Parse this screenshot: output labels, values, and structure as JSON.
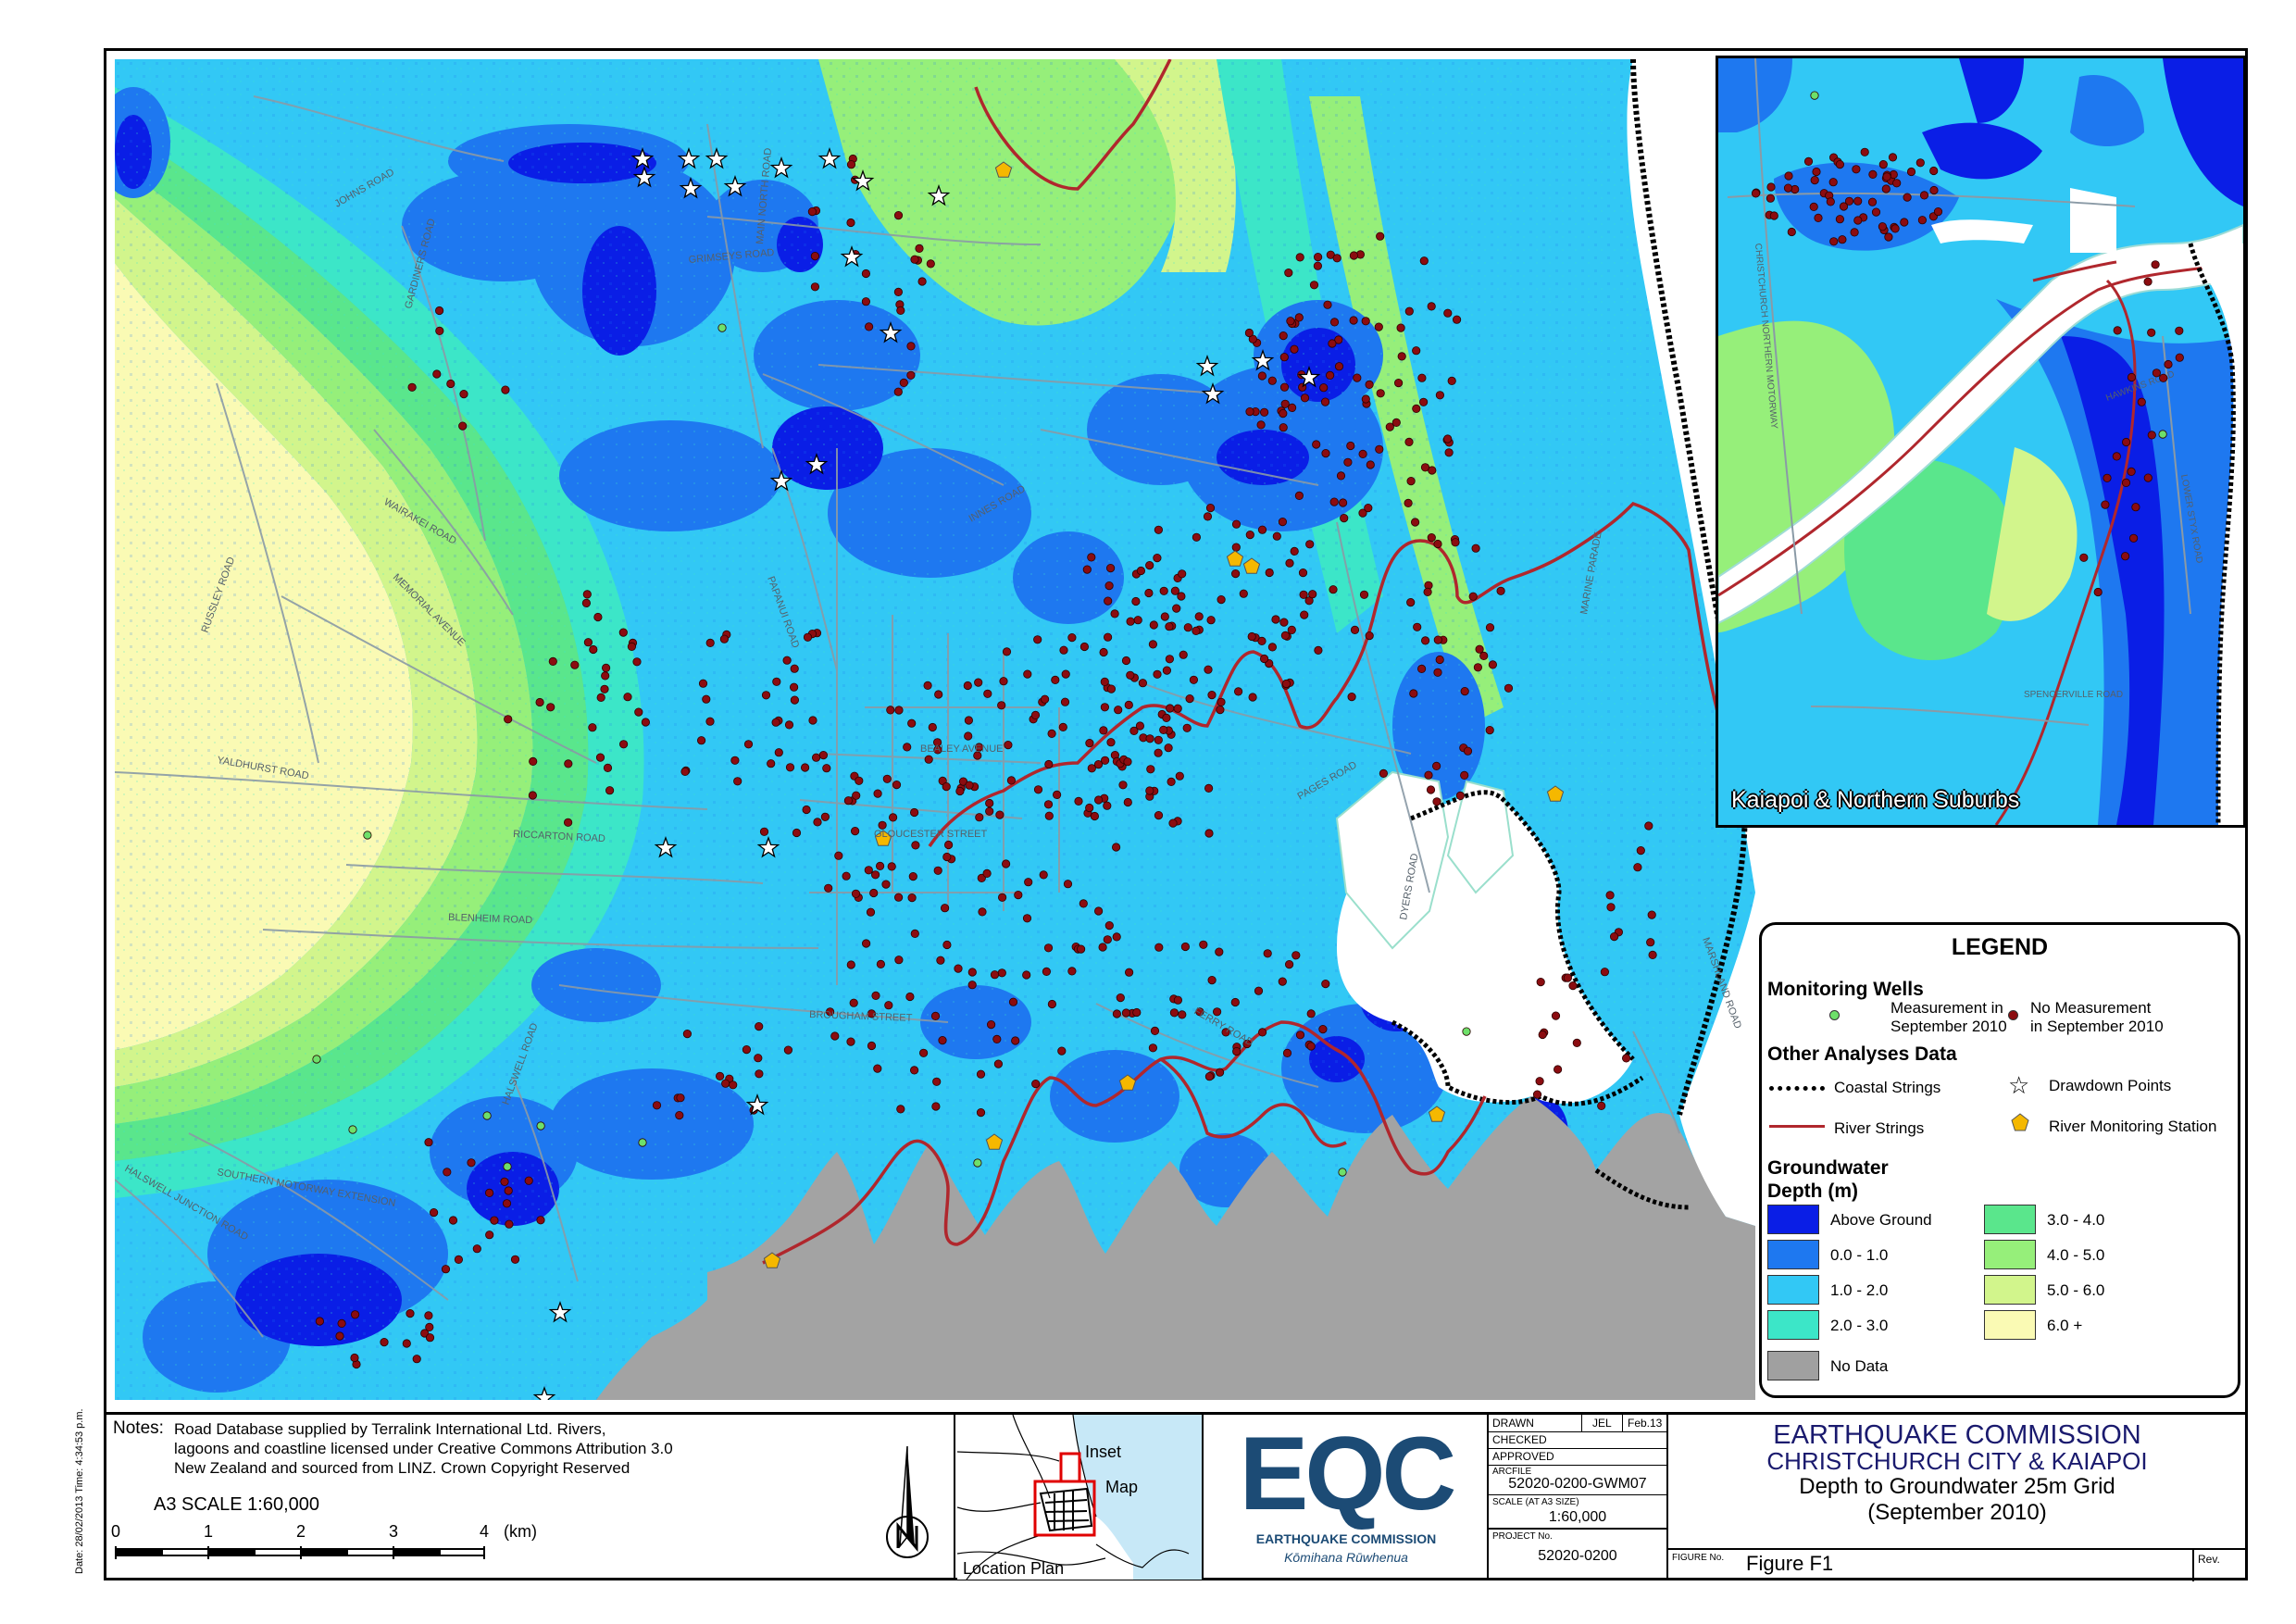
{
  "map": {
    "roads": [
      {
        "name": "JOHNS ROAD"
      },
      {
        "name": "GARDINERS ROAD"
      },
      {
        "name": "GRIMSEYS ROAD"
      },
      {
        "name": "HUSSEY ROAD"
      },
      {
        "name": "RUSSLEY ROAD"
      },
      {
        "name": "WAIRAKEI ROAD"
      },
      {
        "name": "MEMORIAL AVENUE"
      },
      {
        "name": "YALDHURST ROAD"
      },
      {
        "name": "RICCARTON ROAD"
      },
      {
        "name": "BLENHEIM ROAD"
      },
      {
        "name": "PAPANUI ROAD"
      },
      {
        "name": "GLOUCESTER STREET"
      },
      {
        "name": "BEALEY AVENUE"
      },
      {
        "name": "BROUGHAM STREET"
      },
      {
        "name": "FERRY ROAD"
      },
      {
        "name": "PAGES ROAD"
      },
      {
        "name": "DYERS ROAD"
      },
      {
        "name": "MARINE PARADE"
      },
      {
        "name": "SOUTHERN MOTORWAY EXTENSION"
      },
      {
        "name": "HALSWELL JUNCTION ROAD"
      },
      {
        "name": "HALSWELL ROAD"
      },
      {
        "name": "MAIN NORTH ROAD"
      },
      {
        "name": "INNES ROAD"
      },
      {
        "name": "MARSHLAND ROAD"
      }
    ]
  },
  "inset": {
    "label": "Kaiapoi & Northern Suburbs",
    "roads": [
      {
        "name": "CHRISTCHURCH NORTHERN MOTORWAY"
      },
      {
        "name": "SPENCERVILLE ROAD"
      },
      {
        "name": "LOWER STYX ROAD"
      },
      {
        "name": "HAWKINS ROAD"
      }
    ]
  },
  "legend": {
    "title": "LEGEND",
    "monitoring_wells": "Monitoring Wells",
    "well_measured": [
      "Measurement in",
      "September 2010"
    ],
    "well_not_measured": [
      "No Measurement",
      "in September 2010"
    ],
    "other_analyses": "Other Analyses Data",
    "coastal_strings": "Coastal Strings",
    "drawdown_points": "Drawdown Points",
    "river_strings": "River Strings",
    "river_monitoring_station": "River Monitoring Station",
    "groundwater_depth": [
      "Groundwater",
      "Depth (m)"
    ],
    "classes": [
      {
        "label": "Above Ground",
        "color": "#0a1ee6"
      },
      {
        "label": "0.0 - 1.0",
        "color": "#1e78f0"
      },
      {
        "label": "1.0 - 2.0",
        "color": "#32c8f5"
      },
      {
        "label": "2.0 - 3.0",
        "color": "#3ce6c8"
      },
      {
        "label": "3.0 - 4.0",
        "color": "#5ae68c"
      },
      {
        "label": "4.0 - 5.0",
        "color": "#96ef7a"
      },
      {
        "label": "5.0 - 6.0",
        "color": "#d2f58c"
      },
      {
        "label": "6.0 +",
        "color": "#fafab4"
      },
      {
        "label": "No Data",
        "color": "#a0a0a0"
      }
    ]
  },
  "notes": {
    "label": "Notes:",
    "lines": [
      "Road Database supplied by Terralink International Ltd. Rivers,",
      "lagoons and coastline licensed under Creative Commons Attribution 3.0",
      "New Zealand and sourced from LINZ. Crown Copyright Reserved"
    ]
  },
  "scale": {
    "text": "A3 SCALE 1:60,000",
    "ticks": [
      "0",
      "1",
      "2",
      "3",
      "4"
    ],
    "unit": "(km)"
  },
  "location_plan": {
    "label": "Location Plan",
    "inset_label": "Inset",
    "map_label": "Map"
  },
  "logo": {
    "letters": "EQC",
    "name": "EARTHQUAKE COMMISSION",
    "maori": "Kōmihana Rūwhenua"
  },
  "title_block": {
    "drawn_label": "DRAWN",
    "drawn_by": "JEL",
    "drawn_date": "Feb.13",
    "checked_label": "CHECKED",
    "approved_label": "APPROVED",
    "arcfile_label": "ARCFILE",
    "arcfile": "52020-0200-GWM07",
    "scale_label": "SCALE (AT A3 SIZE)",
    "scale": "1:60,000",
    "project_label": "PROJECT No.",
    "project": "52020-0200",
    "figure_label": "FIGURE No.",
    "figure": "Figure F1",
    "rev_label": "Rev.",
    "org": "EARTHQUAKE COMMISSION",
    "area": "CHRISTCHURCH CITY & KAIAPOI",
    "subject": "Depth to Groundwater 25m Grid",
    "period": "(September 2010)"
  },
  "date_stamp": "Date: 28/02/2013 Time: 4:34:53 p.m."
}
